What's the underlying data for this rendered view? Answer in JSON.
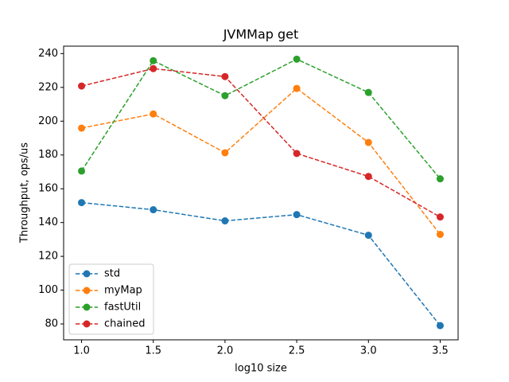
{
  "chart_data": {
    "type": "line",
    "title": "JVMMap get",
    "x_label": "log10 size",
    "y_label": "Throughput, ops/us",
    "x": [
      1.0,
      1.5,
      2.0,
      2.5,
      3.0,
      3.5
    ],
    "series": [
      {
        "name": "std",
        "color": "#1f77b4",
        "values": [
          151.8,
          147.6,
          141,
          144.7,
          132.5,
          79
        ]
      },
      {
        "name": "myMap",
        "color": "#ff7f0e",
        "values": [
          195.9,
          204.3,
          181.3,
          219.4,
          187.4,
          133
        ]
      },
      {
        "name": "fastUtil",
        "color": "#2ca02c",
        "values": [
          170.5,
          235.8,
          215.1,
          236.7,
          217,
          165.9
        ]
      },
      {
        "name": "chained",
        "color": "#d62728",
        "values": [
          220.8,
          231.1,
          226.4,
          180.9,
          167.3,
          143.3
        ]
      }
    ],
    "xlim": [
      0.875,
      3.625
    ],
    "xticks": [
      {
        "value": 1,
        "label": "1.0"
      },
      1.5,
      {
        "value": 2,
        "label": "2.0"
      },
      2.5,
      {
        "value": 3,
        "label": "3.0"
      },
      3.5
    ],
    "ylim": [
      70.6,
      244.4
    ],
    "yticks": [
      80,
      100,
      120,
      140,
      160,
      180,
      200,
      220,
      240
    ],
    "legend": "lower left",
    "line_style": "dashed",
    "marker": "circle"
  }
}
